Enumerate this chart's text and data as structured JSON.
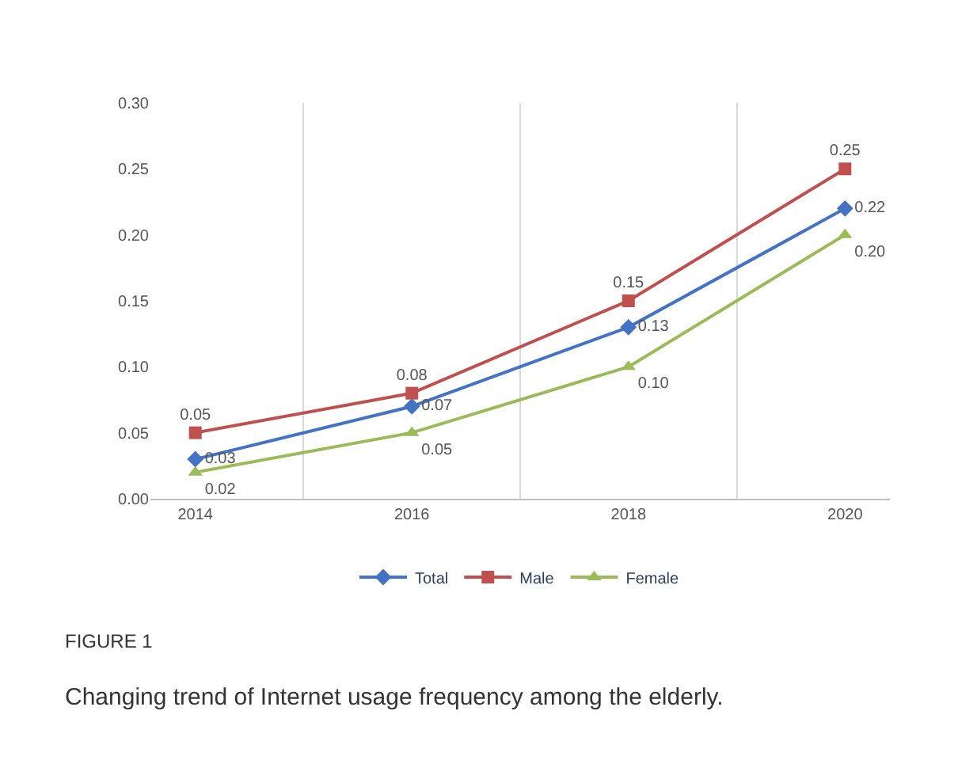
{
  "chart_data": {
    "type": "line",
    "categories": [
      "2014",
      "2016",
      "2018",
      "2020"
    ],
    "series": [
      {
        "name": "Total",
        "color": "#4472c4",
        "marker": "diamond",
        "values": [
          0.03,
          0.07,
          0.13,
          0.22
        ],
        "value_labels": [
          "0.03",
          "0.07",
          "0.13",
          "0.22"
        ]
      },
      {
        "name": "Male",
        "color": "#c0504d",
        "marker": "square",
        "values": [
          0.05,
          0.08,
          0.15,
          0.25
        ],
        "value_labels": [
          "0.05",
          "0.08",
          "0.15",
          "0.25"
        ]
      },
      {
        "name": "Female",
        "color": "#9bbb59",
        "marker": "triangle",
        "values": [
          0.02,
          0.05,
          0.1,
          0.2
        ],
        "value_labels": [
          "0.02",
          "0.05",
          "0.10",
          "0.20"
        ]
      }
    ],
    "ylim": [
      0,
      0.3
    ],
    "yticks": [
      {
        "value": 0,
        "label": "0.00"
      },
      {
        "value": 0.05,
        "label": "0.05"
      },
      {
        "value": 0.1,
        "label": "0.10"
      },
      {
        "value": 0.15,
        "label": "0.15"
      },
      {
        "value": 0.2,
        "label": "0.20"
      },
      {
        "value": 0.25,
        "label": "0.25"
      },
      {
        "value": 0.3,
        "label": "0.30"
      }
    ],
    "grid": "x",
    "legend": "bottom",
    "line_style": "solid",
    "annotations": [
      "FIGURE 1",
      "Changing trend of Internet usage frequency among the elderly."
    ]
  }
}
